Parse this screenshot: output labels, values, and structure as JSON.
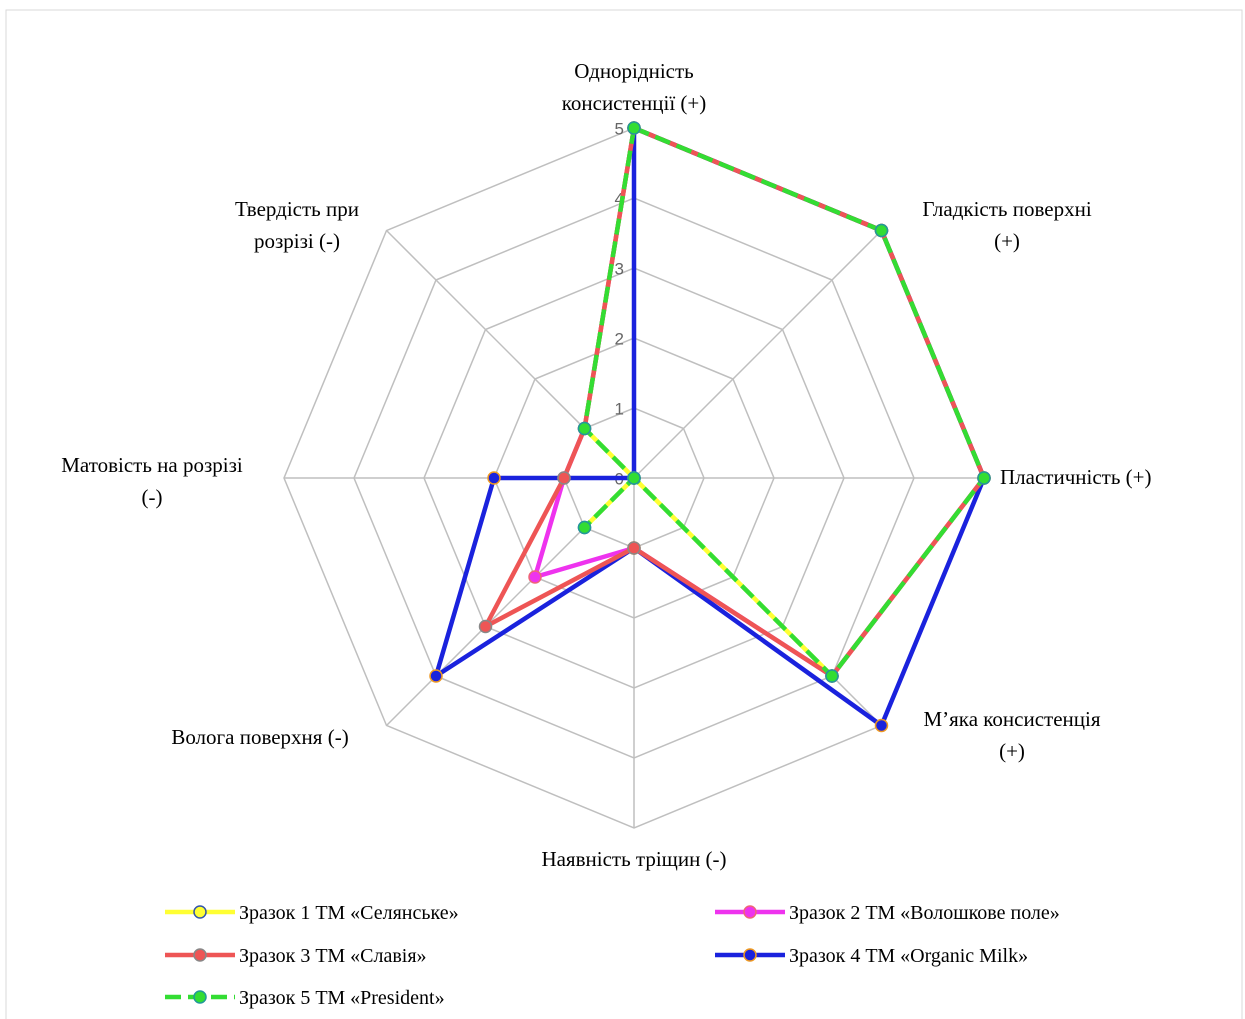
{
  "chart_data": {
    "type": "radar",
    "categories": [
      "Однорідність\nконсистенції (+)",
      "Гладкість поверхні\n(+)",
      "Пластичність (+)",
      "М’яка консистенція\n(+)",
      "Наявність тріщин (-)",
      "Волога поверхня (-)",
      "Матовість на розрізі\n(-)",
      "Твердість при\nрозрізі (-)"
    ],
    "ylim": [
      0,
      5
    ],
    "yticks": [
      0,
      1,
      2,
      3,
      4,
      5
    ],
    "grid": true,
    "series": [
      {
        "name": "Зразок 1 ТМ «Селянське»",
        "color": "#ffff33",
        "marker_edge": "#3355aa",
        "values": [
          5,
          5,
          5,
          4,
          0,
          1,
          0,
          1
        ]
      },
      {
        "name": "Зразок 2 ТМ «Волошкове поле»",
        "color": "#ee33ee",
        "marker_edge": "#ee6677",
        "values": [
          5,
          5,
          5,
          4,
          1,
          2,
          1,
          1
        ]
      },
      {
        "name": "Зразок 3 ТМ «Славія»",
        "color": "#ee5555",
        "marker_edge": "#888888",
        "values": [
          5,
          5,
          5,
          4,
          1,
          3,
          1,
          1
        ]
      },
      {
        "name": "Зразок 4 ТМ «Organic Milk»",
        "color": "#1a22dd",
        "marker_edge": "#ee9922",
        "values": [
          5,
          5,
          5,
          5,
          1,
          4,
          2,
          0
        ]
      },
      {
        "name": "Зразок 5 ТМ «President»",
        "color": "#33dd33",
        "marker_edge": "#229999",
        "dashed": true,
        "values": [
          5,
          5,
          5,
          4,
          0,
          1,
          0,
          1
        ]
      }
    ]
  }
}
